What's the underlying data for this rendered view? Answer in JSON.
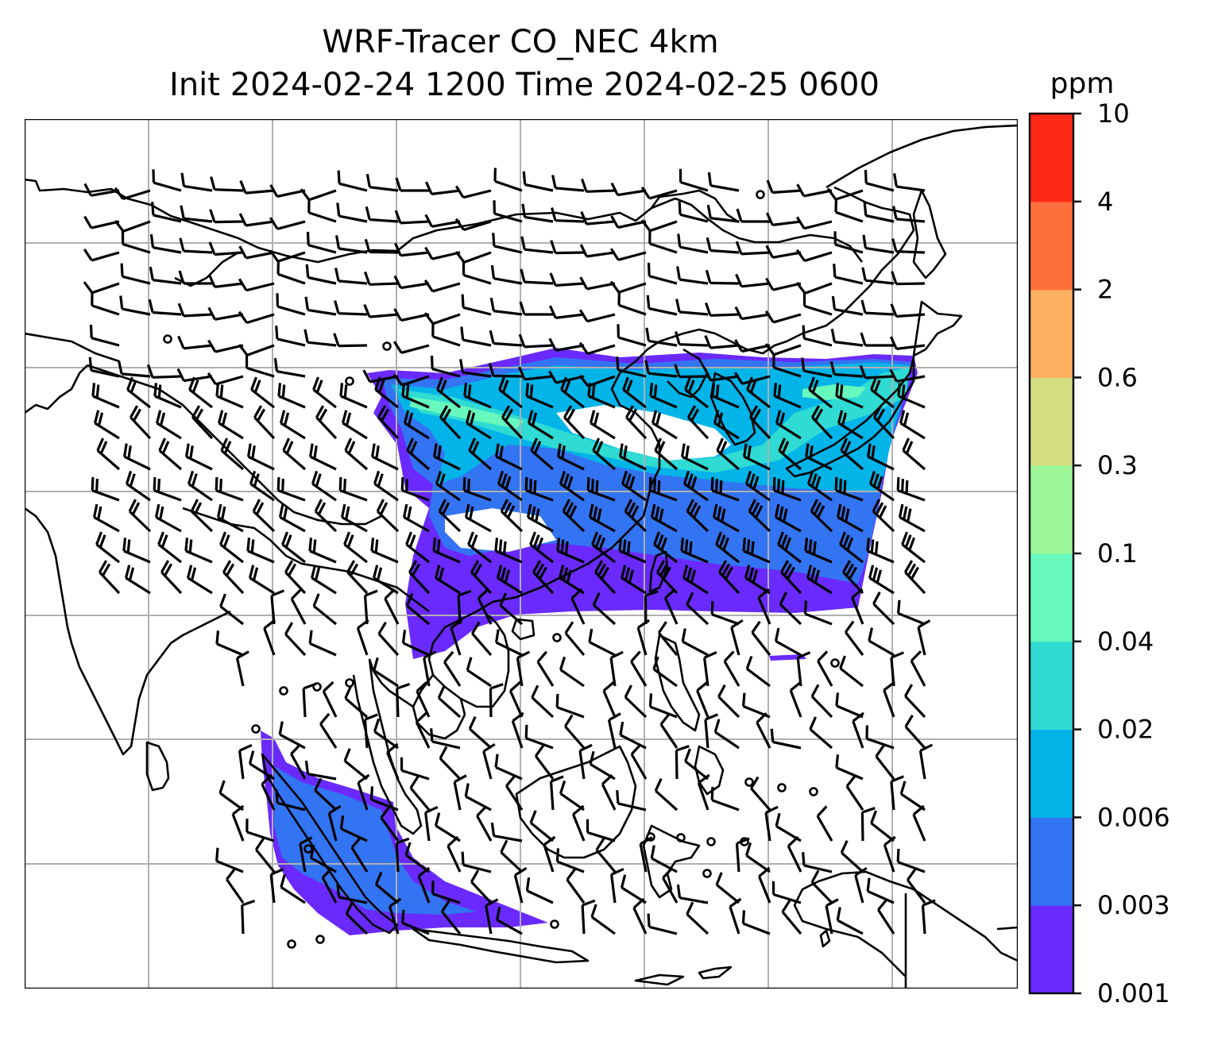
{
  "title": {
    "line1": "WRF-Tracer CO_NEC 4km",
    "line2": "Init 2024-02-24 1200 Time 2024-02-25 0600"
  },
  "colorbar": {
    "unit": "ppm",
    "ticks": [
      "0.001",
      "0.003",
      "0.006",
      "0.02",
      "0.04",
      "0.1",
      "0.3",
      "0.6",
      "2",
      "4",
      "10"
    ],
    "colors": [
      "#6a2afd",
      "#3374f2",
      "#03b4e9",
      "#2fdbd3",
      "#67f8bd",
      "#9cf799",
      "#d3de83",
      "#feb061",
      "#ff6f3b",
      "#ff2a16"
    ]
  },
  "map": {
    "grid": "on",
    "lon_lines": 7,
    "lat_lines": 5
  }
}
